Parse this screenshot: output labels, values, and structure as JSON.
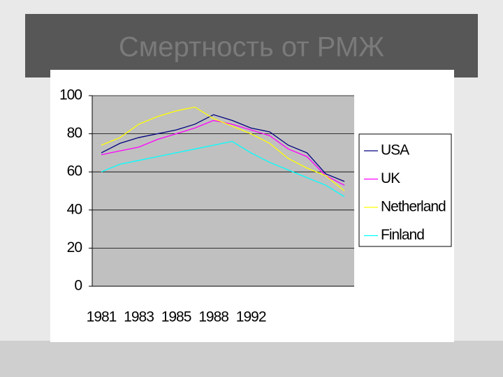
{
  "chart_data": {
    "type": "line",
    "title": "Смертность от РМЖ",
    "categories": [
      "1981",
      null,
      "1983",
      null,
      "1985",
      null,
      "1988",
      null,
      "1992",
      null,
      null,
      null,
      null,
      null
    ],
    "series": [
      {
        "name": "USA",
        "color": "#000080",
        "values": [
          70,
          75,
          78,
          80,
          82,
          85,
          90,
          87,
          83,
          81,
          74,
          70,
          59,
          55
        ]
      },
      {
        "name": "UK",
        "color": "#ff00ff",
        "values": [
          69,
          71,
          73,
          77,
          80,
          83,
          87,
          85,
          82,
          79,
          72,
          68,
          58,
          53
        ]
      },
      {
        "name": "Netherland",
        "color": "#ffff00",
        "values": [
          74,
          78,
          85,
          89,
          92,
          94,
          88,
          84,
          80,
          75,
          67,
          62,
          58,
          50
        ]
      },
      {
        "name": "Finland",
        "color": "#00ffff",
        "values": [
          60,
          64,
          66,
          68,
          70,
          72,
          74,
          76,
          70,
          65,
          61,
          57,
          53,
          47
        ]
      }
    ],
    "ylim": [
      0,
      100
    ],
    "yticks": [
      0,
      20,
      40,
      60,
      80,
      100
    ],
    "grid": true,
    "legend": "right"
  }
}
